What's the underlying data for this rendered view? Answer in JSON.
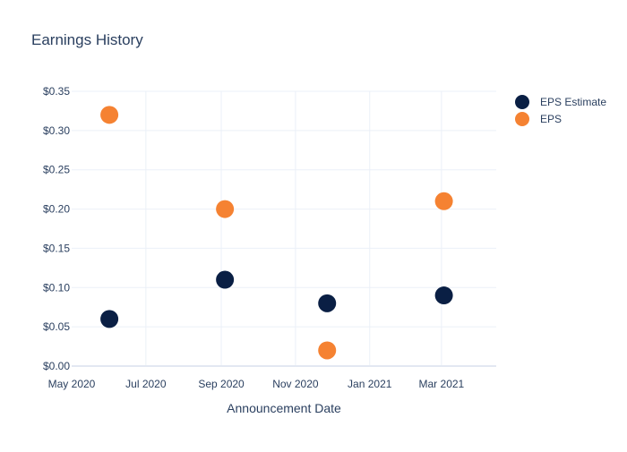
{
  "chart_data": {
    "type": "scatter",
    "title": "Earnings History",
    "xlabel": "Announcement Date",
    "ylabel": "",
    "x_type": "date",
    "xlim": [
      "2020-05-01",
      "2021-04-15"
    ],
    "ylim": [
      0,
      0.35
    ],
    "x_ticks": [
      {
        "date": "2020-05-01",
        "label": "May 2020"
      },
      {
        "date": "2020-07-01",
        "label": "Jul 2020"
      },
      {
        "date": "2020-09-01",
        "label": "Sep 2020"
      },
      {
        "date": "2020-11-01",
        "label": "Nov 2020"
      },
      {
        "date": "2021-01-01",
        "label": "Jan 2021"
      },
      {
        "date": "2021-03-01",
        "label": "Mar 2021"
      }
    ],
    "y_ticks": [
      {
        "value": 0.0,
        "label": "$0.00"
      },
      {
        "value": 0.05,
        "label": "$0.05"
      },
      {
        "value": 0.1,
        "label": "$0.10"
      },
      {
        "value": 0.15,
        "label": "$0.15"
      },
      {
        "value": 0.2,
        "label": "$0.20"
      },
      {
        "value": 0.25,
        "label": "$0.25"
      },
      {
        "value": 0.3,
        "label": "$0.30"
      },
      {
        "value": 0.35,
        "label": "$0.35"
      }
    ],
    "grid": true,
    "legend_position": "top-right",
    "series": [
      {
        "name": "EPS Estimate",
        "color": "#0a1f44",
        "points": [
          {
            "x": "2020-06-01",
            "y": 0.06
          },
          {
            "x": "2020-09-04",
            "y": 0.11
          },
          {
            "x": "2020-11-27",
            "y": 0.08
          },
          {
            "x": "2021-03-03",
            "y": 0.09
          }
        ]
      },
      {
        "name": "EPS",
        "color": "#f58232",
        "points": [
          {
            "x": "2020-06-01",
            "y": 0.32
          },
          {
            "x": "2020-09-04",
            "y": 0.2
          },
          {
            "x": "2020-11-27",
            "y": 0.02
          },
          {
            "x": "2021-03-03",
            "y": 0.21
          }
        ]
      }
    ]
  }
}
